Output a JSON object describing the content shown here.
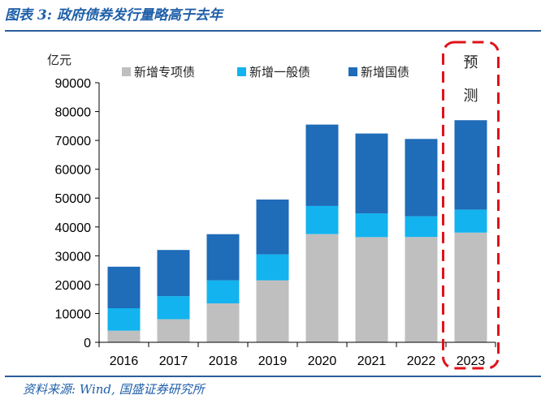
{
  "header": {
    "title": "图表 3:  政府债券发行量略高于去年"
  },
  "footer": {
    "source": "资料来源:  Wind,  国盛证券研究所"
  },
  "colors": {
    "special": "#bfbfbf",
    "general": "#12b3ef",
    "treasury": "#1f6cb8",
    "rule": "#2b5d9c",
    "title": "#1f5fa8",
    "forecast_box": "#e0121a"
  },
  "chart_data": {
    "type": "bar",
    "stacked": true,
    "title": "",
    "xlabel": "",
    "ylabel": "亿元",
    "categories": [
      "2016",
      "2017",
      "2018",
      "2019",
      "2020",
      "2021",
      "2022",
      "2023"
    ],
    "series": [
      {
        "name": "新增专项债",
        "color": "#bfbfbf",
        "values": [
          4000,
          8000,
          13500,
          21500,
          37500,
          36500,
          36500,
          38000
        ]
      },
      {
        "name": "新增一般债",
        "color": "#12b3ef",
        "values": [
          7800,
          8000,
          8000,
          9000,
          9800,
          8200,
          7200,
          8000
        ]
      },
      {
        "name": "新增国债",
        "color": "#1f6cb8",
        "values": [
          14400,
          16000,
          16000,
          19000,
          28200,
          27700,
          26800,
          31000
        ]
      }
    ],
    "ylim": [
      0,
      90000
    ],
    "yticks": [
      0,
      10000,
      20000,
      30000,
      40000,
      50000,
      60000,
      70000,
      80000,
      90000
    ],
    "grid": false,
    "legend_position": "top",
    "annotation": {
      "label_line1": "预",
      "label_line2": "测",
      "applies_to": "2023"
    }
  }
}
